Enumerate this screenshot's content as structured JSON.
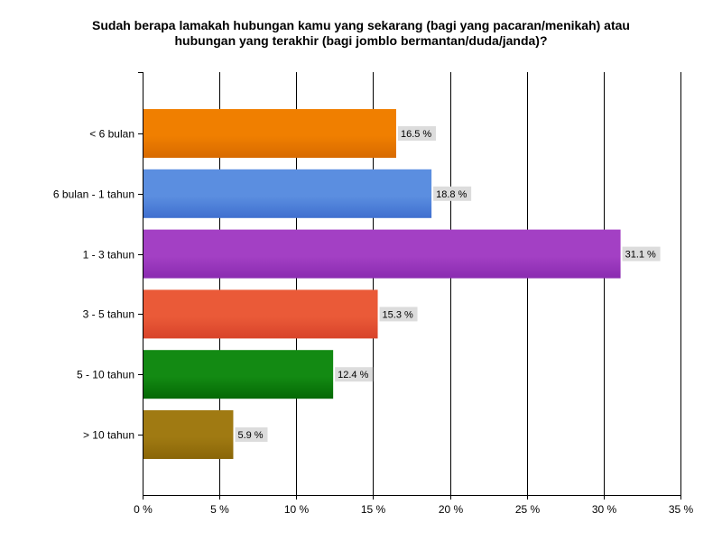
{
  "chart_data": {
    "type": "bar",
    "orientation": "horizontal",
    "title_lines": [
      "Sudah berapa lamakah hubungan kamu yang sekarang (bagi yang pacaran/menikah) atau",
      "hubungan yang terakhir (bagi jomblo bermantan/duda/janda)?"
    ],
    "categories": [
      "< 6 bulan",
      "6 bulan - 1 tahun",
      "1 - 3 tahun",
      "3 - 5 tahun",
      "5 - 10 tahun",
      "> 10 tahun"
    ],
    "values": [
      16.5,
      18.8,
      31.1,
      15.3,
      12.4,
      5.9
    ],
    "data_labels": [
      "16.5 %",
      "18.8 %",
      "31.1 %",
      "15.3 %",
      "12.4 %",
      "5.9 %"
    ],
    "bar_colors": [
      "#f07f00",
      "#5b8ee0",
      "#a340c4",
      "#ea5a38",
      "#138a13",
      "#a07a12"
    ],
    "bar_colors_dark": [
      "#d86a00",
      "#3f6fcf",
      "#8a2bb0",
      "#d8432a",
      "#046804",
      "#8a6608"
    ],
    "xlim": [
      0,
      35
    ],
    "xticks": [
      0,
      5,
      10,
      15,
      20,
      25,
      30,
      35
    ],
    "xtick_labels": [
      "0 %",
      "5 %",
      "10 %",
      "15 %",
      "20 %",
      "25 %",
      "30 %",
      "35 %"
    ],
    "grid": true,
    "legend": "none"
  }
}
